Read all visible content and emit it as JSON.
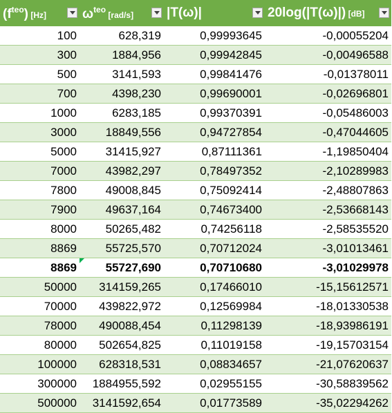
{
  "headers": [
    {
      "main": "(f",
      "sup": "teo",
      "tail": ")",
      "unit": " [Hz]"
    },
    {
      "main": "ω",
      "sup": "teo",
      "tail": "",
      "unit": " [rad/s]"
    },
    {
      "main": "|T(ω)|",
      "sup": "",
      "tail": "",
      "unit": ""
    },
    {
      "main": "20log(|T(ω)|)",
      "sup": "",
      "tail": "",
      "unit": " [dB]"
    }
  ],
  "rows": [
    [
      "100",
      "628,319",
      "0,99993645",
      "-0,00055204"
    ],
    [
      "300",
      "1884,956",
      "0,99942845",
      "-0,00496588"
    ],
    [
      "500",
      "3141,593",
      "0,99841476",
      "-0,01378011"
    ],
    [
      "700",
      "4398,230",
      "0,99690001",
      "-0,02696801"
    ],
    [
      "1000",
      "6283,185",
      "0,99370391",
      "-0,05486003"
    ],
    [
      "3000",
      "18849,556",
      "0,94727854",
      "-0,47044605"
    ],
    [
      "5000",
      "31415,927",
      "0,87111361",
      "-1,19850404"
    ],
    [
      "7000",
      "43982,297",
      "0,78497352",
      "-2,10289983"
    ],
    [
      "7800",
      "49008,845",
      "0,75092414",
      "-2,48807863"
    ],
    [
      "7900",
      "49637,164",
      "0,74673400",
      "-2,53668143"
    ],
    [
      "8000",
      "50265,482",
      "0,74256118",
      "-2,58535520"
    ],
    [
      "8869",
      "55725,570",
      "0,70712024",
      "-3,01013461"
    ],
    [
      "8869",
      "55727,690",
      "0,70710680",
      "-3,01029978"
    ],
    [
      "50000",
      "314159,265",
      "0,17466010",
      "-15,15612571"
    ],
    [
      "70000",
      "439822,972",
      "0,12569984",
      "-18,01330538"
    ],
    [
      "78000",
      "490088,454",
      "0,11298139",
      "-18,93986191"
    ],
    [
      "80000",
      "502654,825",
      "0,11019158",
      "-19,15703154"
    ],
    [
      "100000",
      "628318,531",
      "0,08834657",
      "-21,07620637"
    ],
    [
      "300000",
      "1884955,592",
      "0,02955155",
      "-30,58839562"
    ],
    [
      "500000",
      "3141592,654",
      "0,01773589",
      "-35,02294262"
    ]
  ],
  "bold_row_index": 12,
  "colors": {
    "header_bg": "#70ad47",
    "band_bg": "#e2efda",
    "border": "#a9d08e",
    "error_flag": "#00b050"
  }
}
